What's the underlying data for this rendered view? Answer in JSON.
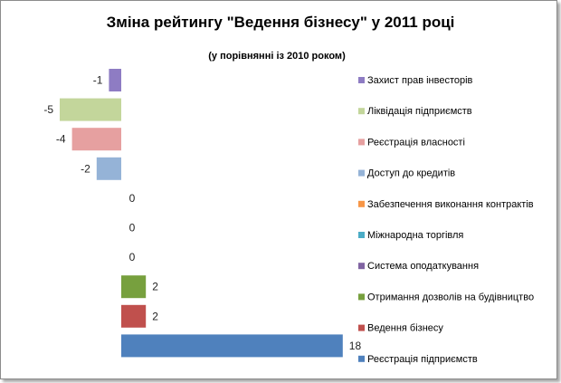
{
  "chart_data": {
    "type": "bar",
    "orientation": "horizontal",
    "title": "Зміна рейтингу \"Ведення бізнесу\" у 2011 році",
    "subtitle": "(у порівнянні  із 2010 роком)",
    "grid": false,
    "axis_visible": false,
    "legend_position": "right",
    "series": [
      {
        "name": "Захист прав інвесторів",
        "value": -1,
        "color": "#8e7cc3"
      },
      {
        "name": "Ліквідація підприємств",
        "value": -5,
        "color": "#c3d69b"
      },
      {
        "name": "Реєстрація власності",
        "value": -4,
        "color": "#e6a0a0"
      },
      {
        "name": "Доступ до кредитів",
        "value": -2,
        "color": "#95b3d7"
      },
      {
        "name": "Забезпечення виконання контрактів",
        "value": 0,
        "color": "#f79646"
      },
      {
        "name": "Міжнародна торгівля",
        "value": 0,
        "color": "#4bacc6"
      },
      {
        "name": "Система оподаткування",
        "value": 0,
        "color": "#8064a2"
      },
      {
        "name": "Отримання дозволів на будівництво",
        "value": 2,
        "color": "#77a03e"
      },
      {
        "name": "Ведення бізнесу",
        "value": 2,
        "color": "#c0504d"
      },
      {
        "name": "Реєстрація підприємств",
        "value": 18,
        "color": "#4f81bd"
      }
    ]
  }
}
